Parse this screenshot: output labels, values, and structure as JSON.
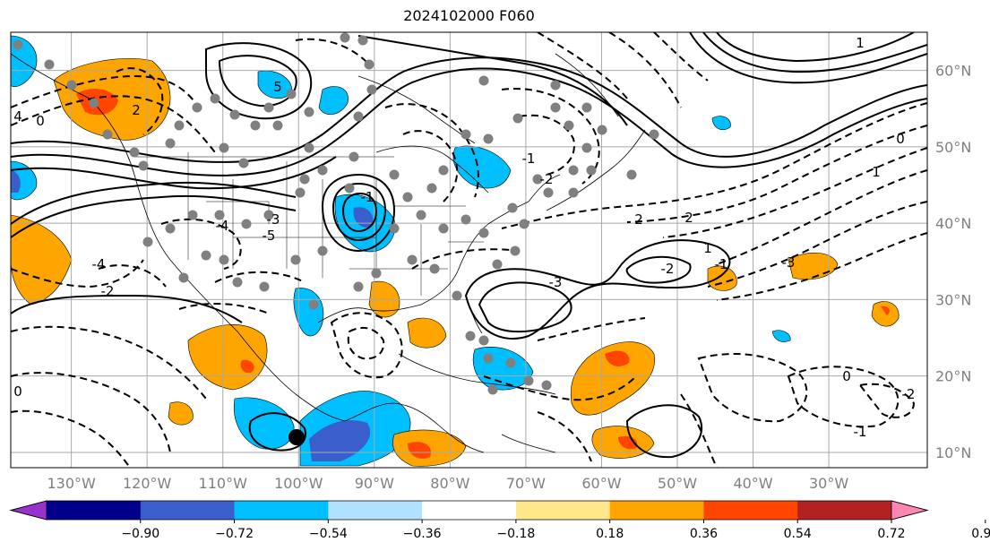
{
  "title": "2024102000 F060",
  "map": {
    "lon_range": [
      -138,
      -17
    ],
    "lat_range": [
      8,
      65
    ],
    "lon_ticks": [
      "130°W",
      "120°W",
      "110°W",
      "100°W",
      "90°W",
      "80°W",
      "70°W",
      "60°W",
      "50°W",
      "40°W",
      "30°W"
    ],
    "lat_ticks": [
      "60°N",
      "50°N",
      "40°N",
      "30°N",
      "20°N",
      "10°N"
    ],
    "grid": true,
    "contour_labels": [
      "1",
      "4",
      "5",
      "2",
      "0",
      "-1",
      "-2",
      "-3",
      "-4",
      "-5",
      "-3",
      "-2",
      "-1",
      "0",
      "1",
      "2",
      "-4",
      "-3",
      "-2",
      "-1",
      "0",
      "-1",
      "2",
      "1",
      "-2",
      "0"
    ]
  },
  "colorbar": {
    "ticks": [
      "−0.90",
      "−0.72",
      "−0.54",
      "−0.36",
      "−0.18",
      "0.18",
      "0.36",
      "0.54",
      "0.72",
      "0.90"
    ],
    "colors": [
      "#9932cc",
      "#00008b",
      "#3a5fcd",
      "#00bfff",
      "#b0e2ff",
      "#ffffff",
      "#ffe88a",
      "#ffa500",
      "#ff4500",
      "#b22222",
      "#ff85b3"
    ],
    "extend": "both"
  },
  "station_marker": "black-dot"
}
